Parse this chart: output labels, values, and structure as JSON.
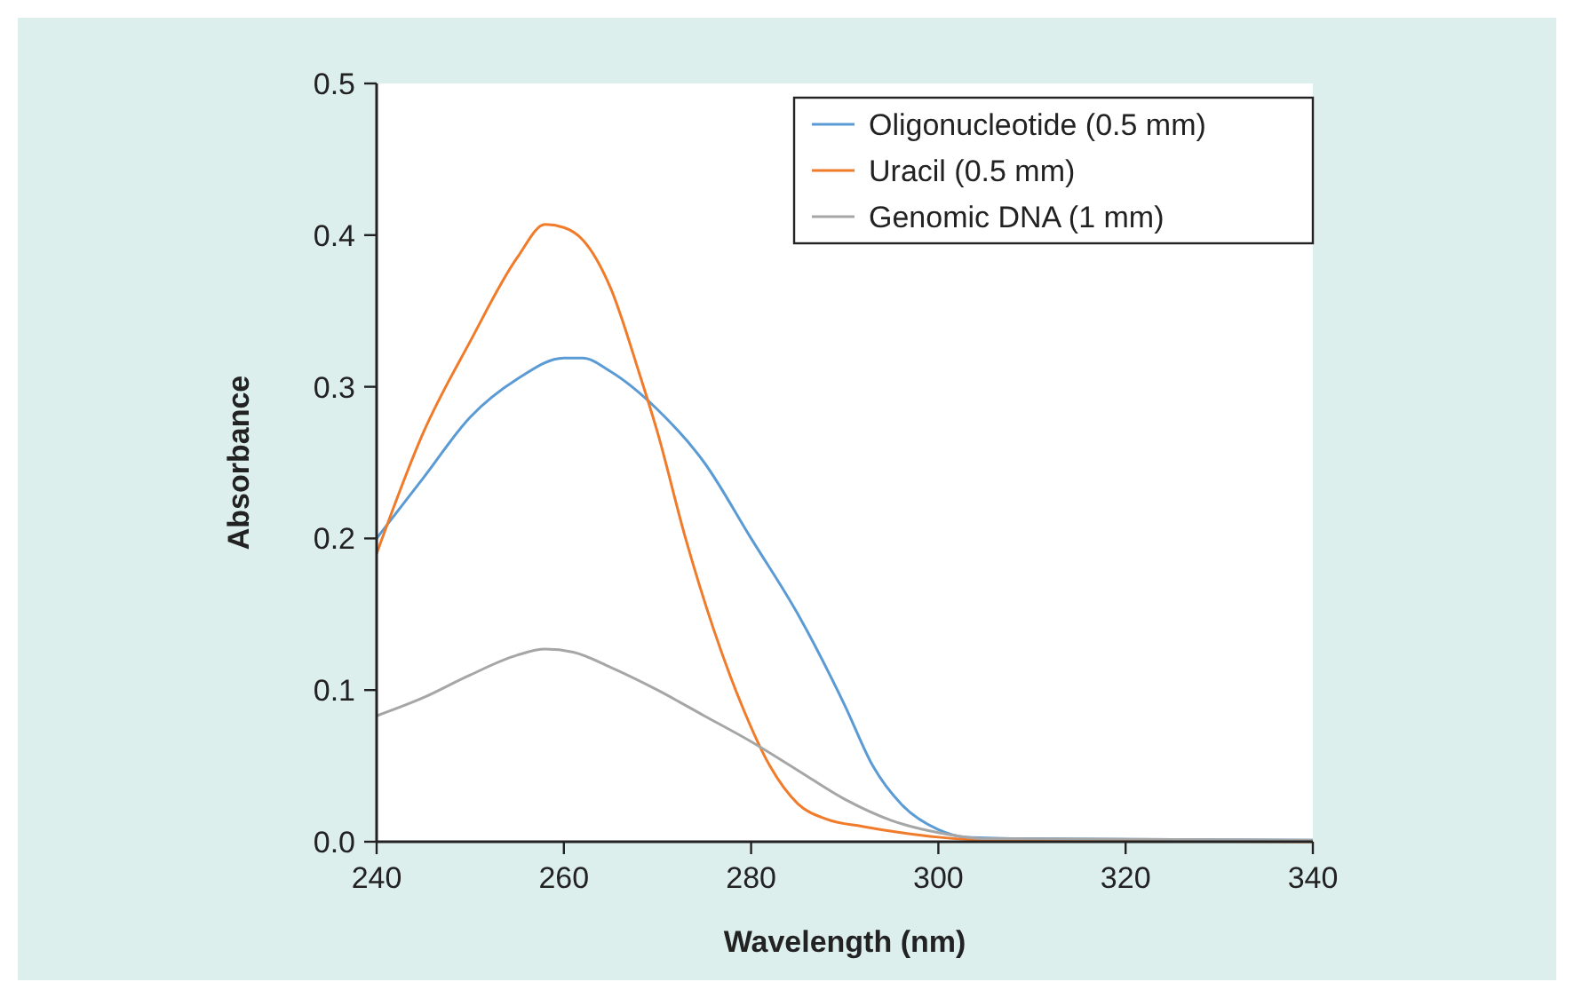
{
  "chart_data": {
    "type": "line",
    "xlabel": "Wavelength (nm)",
    "ylabel": "Absorbance",
    "xlim": [
      240,
      340
    ],
    "ylim": [
      0,
      0.5
    ],
    "xticks": [
      240,
      260,
      280,
      300,
      320,
      340
    ],
    "yticks": [
      {
        "value": 0,
        "label": "0.0"
      },
      0.1,
      0.2,
      0.3,
      0.4,
      0.5
    ],
    "legend": "top right",
    "grid": false,
    "marker": "none",
    "line_style": "solid",
    "series": [
      {
        "name": "Oligonucleotide (0.5 mm)",
        "color": "#5b9bd5",
        "x": [
          240,
          245,
          250,
          255,
          260,
          262,
          265,
          270,
          275,
          280,
          285,
          290,
          293,
          296,
          300,
          303,
          310,
          340
        ],
        "values": [
          0.2,
          0.24,
          0.28,
          0.305,
          0.319,
          0.319,
          0.31,
          0.285,
          0.25,
          0.2,
          0.15,
          0.09,
          0.05,
          0.025,
          0.008,
          0.003,
          0.002,
          0.001
        ]
      },
      {
        "name": "Uracil (0.5 mm)",
        "color": "#f07b2a",
        "x": [
          240,
          245,
          250,
          255,
          258,
          260,
          262,
          265,
          268,
          270,
          273,
          276,
          279,
          282,
          285,
          288,
          292,
          296,
          300,
          305,
          340
        ],
        "values": [
          0.19,
          0.27,
          0.33,
          0.385,
          0.407,
          0.405,
          0.397,
          0.365,
          0.31,
          0.27,
          0.2,
          0.14,
          0.09,
          0.05,
          0.025,
          0.015,
          0.01,
          0.006,
          0.003,
          0.001,
          0
        ]
      },
      {
        "name": "Genomic DNA (1 mm)",
        "color": "#a6a6a6",
        "x": [
          240,
          245,
          250,
          255,
          258,
          261,
          265,
          270,
          275,
          280,
          285,
          290,
          295,
          300,
          305,
          340
        ],
        "values": [
          0.083,
          0.095,
          0.11,
          0.123,
          0.127,
          0.125,
          0.115,
          0.1,
          0.083,
          0.066,
          0.047,
          0.028,
          0.014,
          0.006,
          0.002,
          0.001
        ]
      }
    ]
  }
}
